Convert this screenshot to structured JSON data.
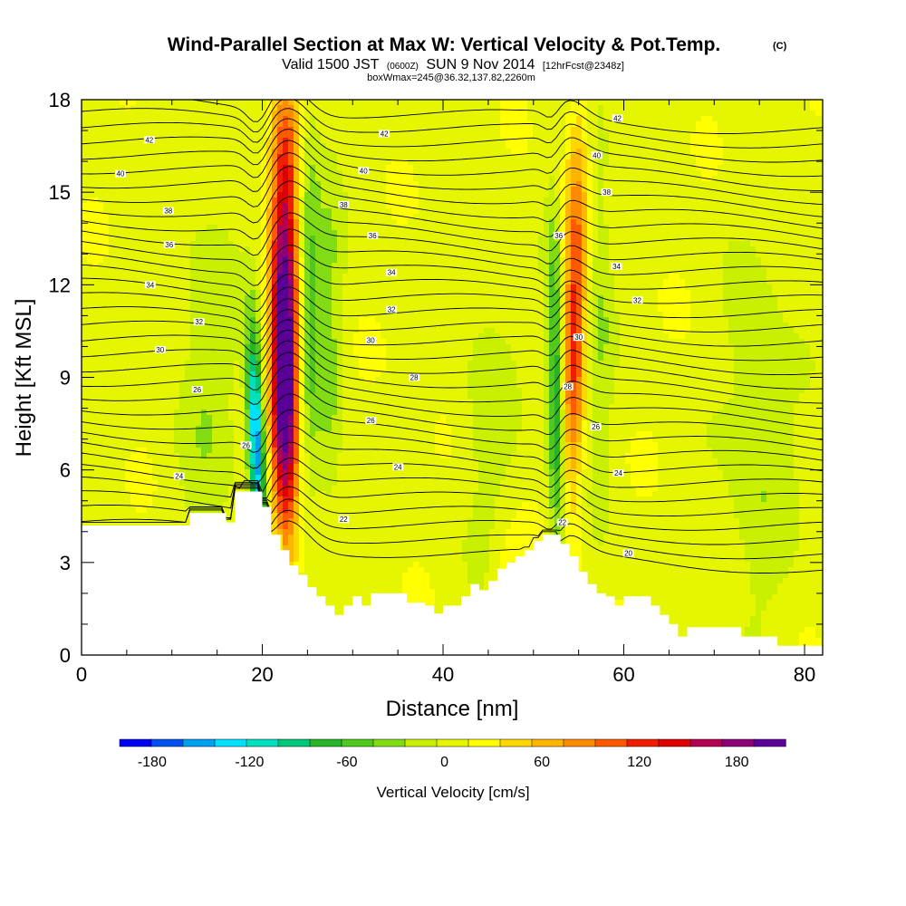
{
  "header": {
    "title": "Wind-Parallel Section at Max W: Vertical Velocity & Pot.Temp.",
    "title_mark": "(C)",
    "valid_prefix": "Valid 1500 JST",
    "valid_utc": "(0600Z)",
    "valid_date": "SUN 9 Nov 2014",
    "forecast": "[12hrFcst@2348z]",
    "box_info": "boxWmax=245@36.32,137.82,2260m"
  },
  "chart_data": {
    "type": "heatmap",
    "xlabel": "Distance [nm]",
    "ylabel": "Height [Kft MSL]",
    "xlim": [
      0,
      82
    ],
    "ylim": [
      0,
      18
    ],
    "x_ticks": [
      0,
      20,
      40,
      60,
      80
    ],
    "y_ticks": [
      0,
      3,
      6,
      9,
      12,
      15,
      18
    ],
    "colorbar": {
      "label": "Vertical Velocity [cm/s]",
      "tick_labels": [
        "-180",
        "-120",
        "-60",
        "0",
        "60",
        "120",
        "180"
      ],
      "tick_values": [
        -180,
        -120,
        -60,
        0,
        60,
        120,
        180
      ],
      "range": [
        -200,
        210
      ],
      "colors": [
        "#0000f0",
        "#0050f0",
        "#00a0f0",
        "#00e0ff",
        "#00e0c0",
        "#00c878",
        "#28b428",
        "#50c81e",
        "#82dc14",
        "#c8f000",
        "#e6f500",
        "#ffff00",
        "#ffd700",
        "#ffb400",
        "#ff8c00",
        "#ff5a00",
        "#f01e00",
        "#dc0000",
        "#b40050",
        "#8c0078",
        "#5a0096"
      ]
    },
    "updraft_cores": [
      {
        "distance": 22.5,
        "peak_cm_s": 245
      },
      {
        "distance": 54.5,
        "peak_cm_s": 110
      }
    ],
    "downdraft_cores": [
      {
        "distance": 19.5,
        "peak_cm_s": -170
      },
      {
        "distance": 52.5,
        "peak_cm_s": -100
      }
    ],
    "terrain": [
      [
        0,
        4.2
      ],
      [
        12,
        4.2
      ],
      [
        12,
        4.6
      ],
      [
        16,
        4.6
      ],
      [
        16,
        4.3
      ],
      [
        17,
        4.3
      ],
      [
        17,
        5.3
      ],
      [
        20,
        5.3
      ],
      [
        20,
        4.8
      ],
      [
        21,
        4.8
      ],
      [
        21,
        3.9
      ],
      [
        22,
        3.9
      ],
      [
        22,
        3.4
      ],
      [
        23,
        3.4
      ],
      [
        23,
        2.9
      ],
      [
        24,
        2.9
      ],
      [
        24,
        2.6
      ],
      [
        25,
        2.6
      ],
      [
        25,
        2.2
      ],
      [
        26,
        2.2
      ],
      [
        26,
        1.9
      ],
      [
        27,
        1.9
      ],
      [
        27,
        1.6
      ],
      [
        28,
        1.6
      ],
      [
        28,
        1.3
      ],
      [
        29,
        1.3
      ],
      [
        29,
        1.6
      ],
      [
        30,
        1.6
      ],
      [
        30,
        1.9
      ],
      [
        31,
        1.9
      ],
      [
        31,
        1.6
      ],
      [
        32,
        1.6
      ],
      [
        32,
        2.0
      ],
      [
        36,
        2.0
      ],
      [
        36,
        1.7
      ],
      [
        38,
        1.7
      ],
      [
        38,
        1.6
      ],
      [
        39,
        1.6
      ],
      [
        39,
        1.35
      ],
      [
        40,
        1.35
      ],
      [
        40,
        1.6
      ],
      [
        42,
        1.6
      ],
      [
        42,
        1.9
      ],
      [
        43,
        1.9
      ],
      [
        43,
        2.3
      ],
      [
        44,
        2.3
      ],
      [
        44,
        2.1
      ],
      [
        45,
        2.1
      ],
      [
        45,
        2.4
      ],
      [
        46,
        2.4
      ],
      [
        46,
        2.8
      ],
      [
        47,
        2.8
      ],
      [
        47,
        3.0
      ],
      [
        48,
        3.0
      ],
      [
        48,
        3.2
      ],
      [
        49,
        3.2
      ],
      [
        49,
        3.4
      ],
      [
        50,
        3.4
      ],
      [
        50,
        3.7
      ],
      [
        51,
        3.7
      ],
      [
        51,
        3.9
      ],
      [
        53,
        3.9
      ],
      [
        53,
        3.6
      ],
      [
        54,
        3.6
      ],
      [
        54,
        3.2
      ],
      [
        55,
        3.2
      ],
      [
        55,
        2.7
      ],
      [
        56,
        2.7
      ],
      [
        56,
        2.3
      ],
      [
        57,
        2.3
      ],
      [
        57,
        2.0
      ],
      [
        58,
        2.0
      ],
      [
        58,
        1.9
      ],
      [
        59,
        1.9
      ],
      [
        59,
        1.6
      ],
      [
        60,
        1.6
      ],
      [
        60,
        1.9
      ],
      [
        63,
        1.9
      ],
      [
        63,
        1.6
      ],
      [
        64,
        1.6
      ],
      [
        64,
        1.3
      ],
      [
        65,
        1.3
      ],
      [
        65,
        1.0
      ],
      [
        66,
        1.0
      ],
      [
        66,
        0.6
      ],
      [
        67,
        0.6
      ],
      [
        67,
        0.9
      ],
      [
        73,
        0.9
      ],
      [
        73,
        0.6
      ],
      [
        77,
        0.6
      ],
      [
        77,
        0.3
      ],
      [
        82,
        0.3
      ]
    ],
    "theta_contours": {
      "units": "°C potential temperature",
      "labels": [
        {
          "text": "24",
          "x": 10.8,
          "y": 5.8
        },
        {
          "text": "26",
          "x": 12.8,
          "y": 8.6
        },
        {
          "text": "30",
          "x": 8.7,
          "y": 9.9
        },
        {
          "text": "32",
          "x": 13.0,
          "y": 10.8
        },
        {
          "text": "34",
          "x": 7.6,
          "y": 12.0
        },
        {
          "text": "36",
          "x": 9.7,
          "y": 13.3
        },
        {
          "text": "38",
          "x": 9.6,
          "y": 14.4
        },
        {
          "text": "40",
          "x": 4.3,
          "y": 15.6
        },
        {
          "text": "42",
          "x": 7.5,
          "y": 16.7
        },
        {
          "text": "26",
          "x": 18.2,
          "y": 6.8
        },
        {
          "text": "22",
          "x": 29.0,
          "y": 4.4
        },
        {
          "text": "26",
          "x": 32.0,
          "y": 7.6
        },
        {
          "text": "24",
          "x": 35.0,
          "y": 6.1
        },
        {
          "text": "28",
          "x": 36.8,
          "y": 9.0
        },
        {
          "text": "30",
          "x": 32.0,
          "y": 10.2
        },
        {
          "text": "32",
          "x": 34.3,
          "y": 11.2
        },
        {
          "text": "34",
          "x": 34.3,
          "y": 12.4
        },
        {
          "text": "36",
          "x": 32.2,
          "y": 13.6
        },
        {
          "text": "38",
          "x": 29.0,
          "y": 14.6
        },
        {
          "text": "40",
          "x": 31.2,
          "y": 15.7
        },
        {
          "text": "42",
          "x": 33.5,
          "y": 16.9
        },
        {
          "text": "22",
          "x": 53.2,
          "y": 4.3
        },
        {
          "text": "20",
          "x": 60.5,
          "y": 3.3
        },
        {
          "text": "24",
          "x": 59.4,
          "y": 5.9
        },
        {
          "text": "26",
          "x": 56.9,
          "y": 7.4
        },
        {
          "text": "28",
          "x": 53.8,
          "y": 8.7
        },
        {
          "text": "30",
          "x": 55.0,
          "y": 10.3
        },
        {
          "text": "32",
          "x": 61.5,
          "y": 11.5
        },
        {
          "text": "34",
          "x": 59.2,
          "y": 12.6
        },
        {
          "text": "36",
          "x": 52.8,
          "y": 13.6
        },
        {
          "text": "38",
          "x": 58.1,
          "y": 15.0
        },
        {
          "text": "40",
          "x": 57.0,
          "y": 16.2
        },
        {
          "text": "42",
          "x": 59.3,
          "y": 17.4
        }
      ]
    }
  }
}
